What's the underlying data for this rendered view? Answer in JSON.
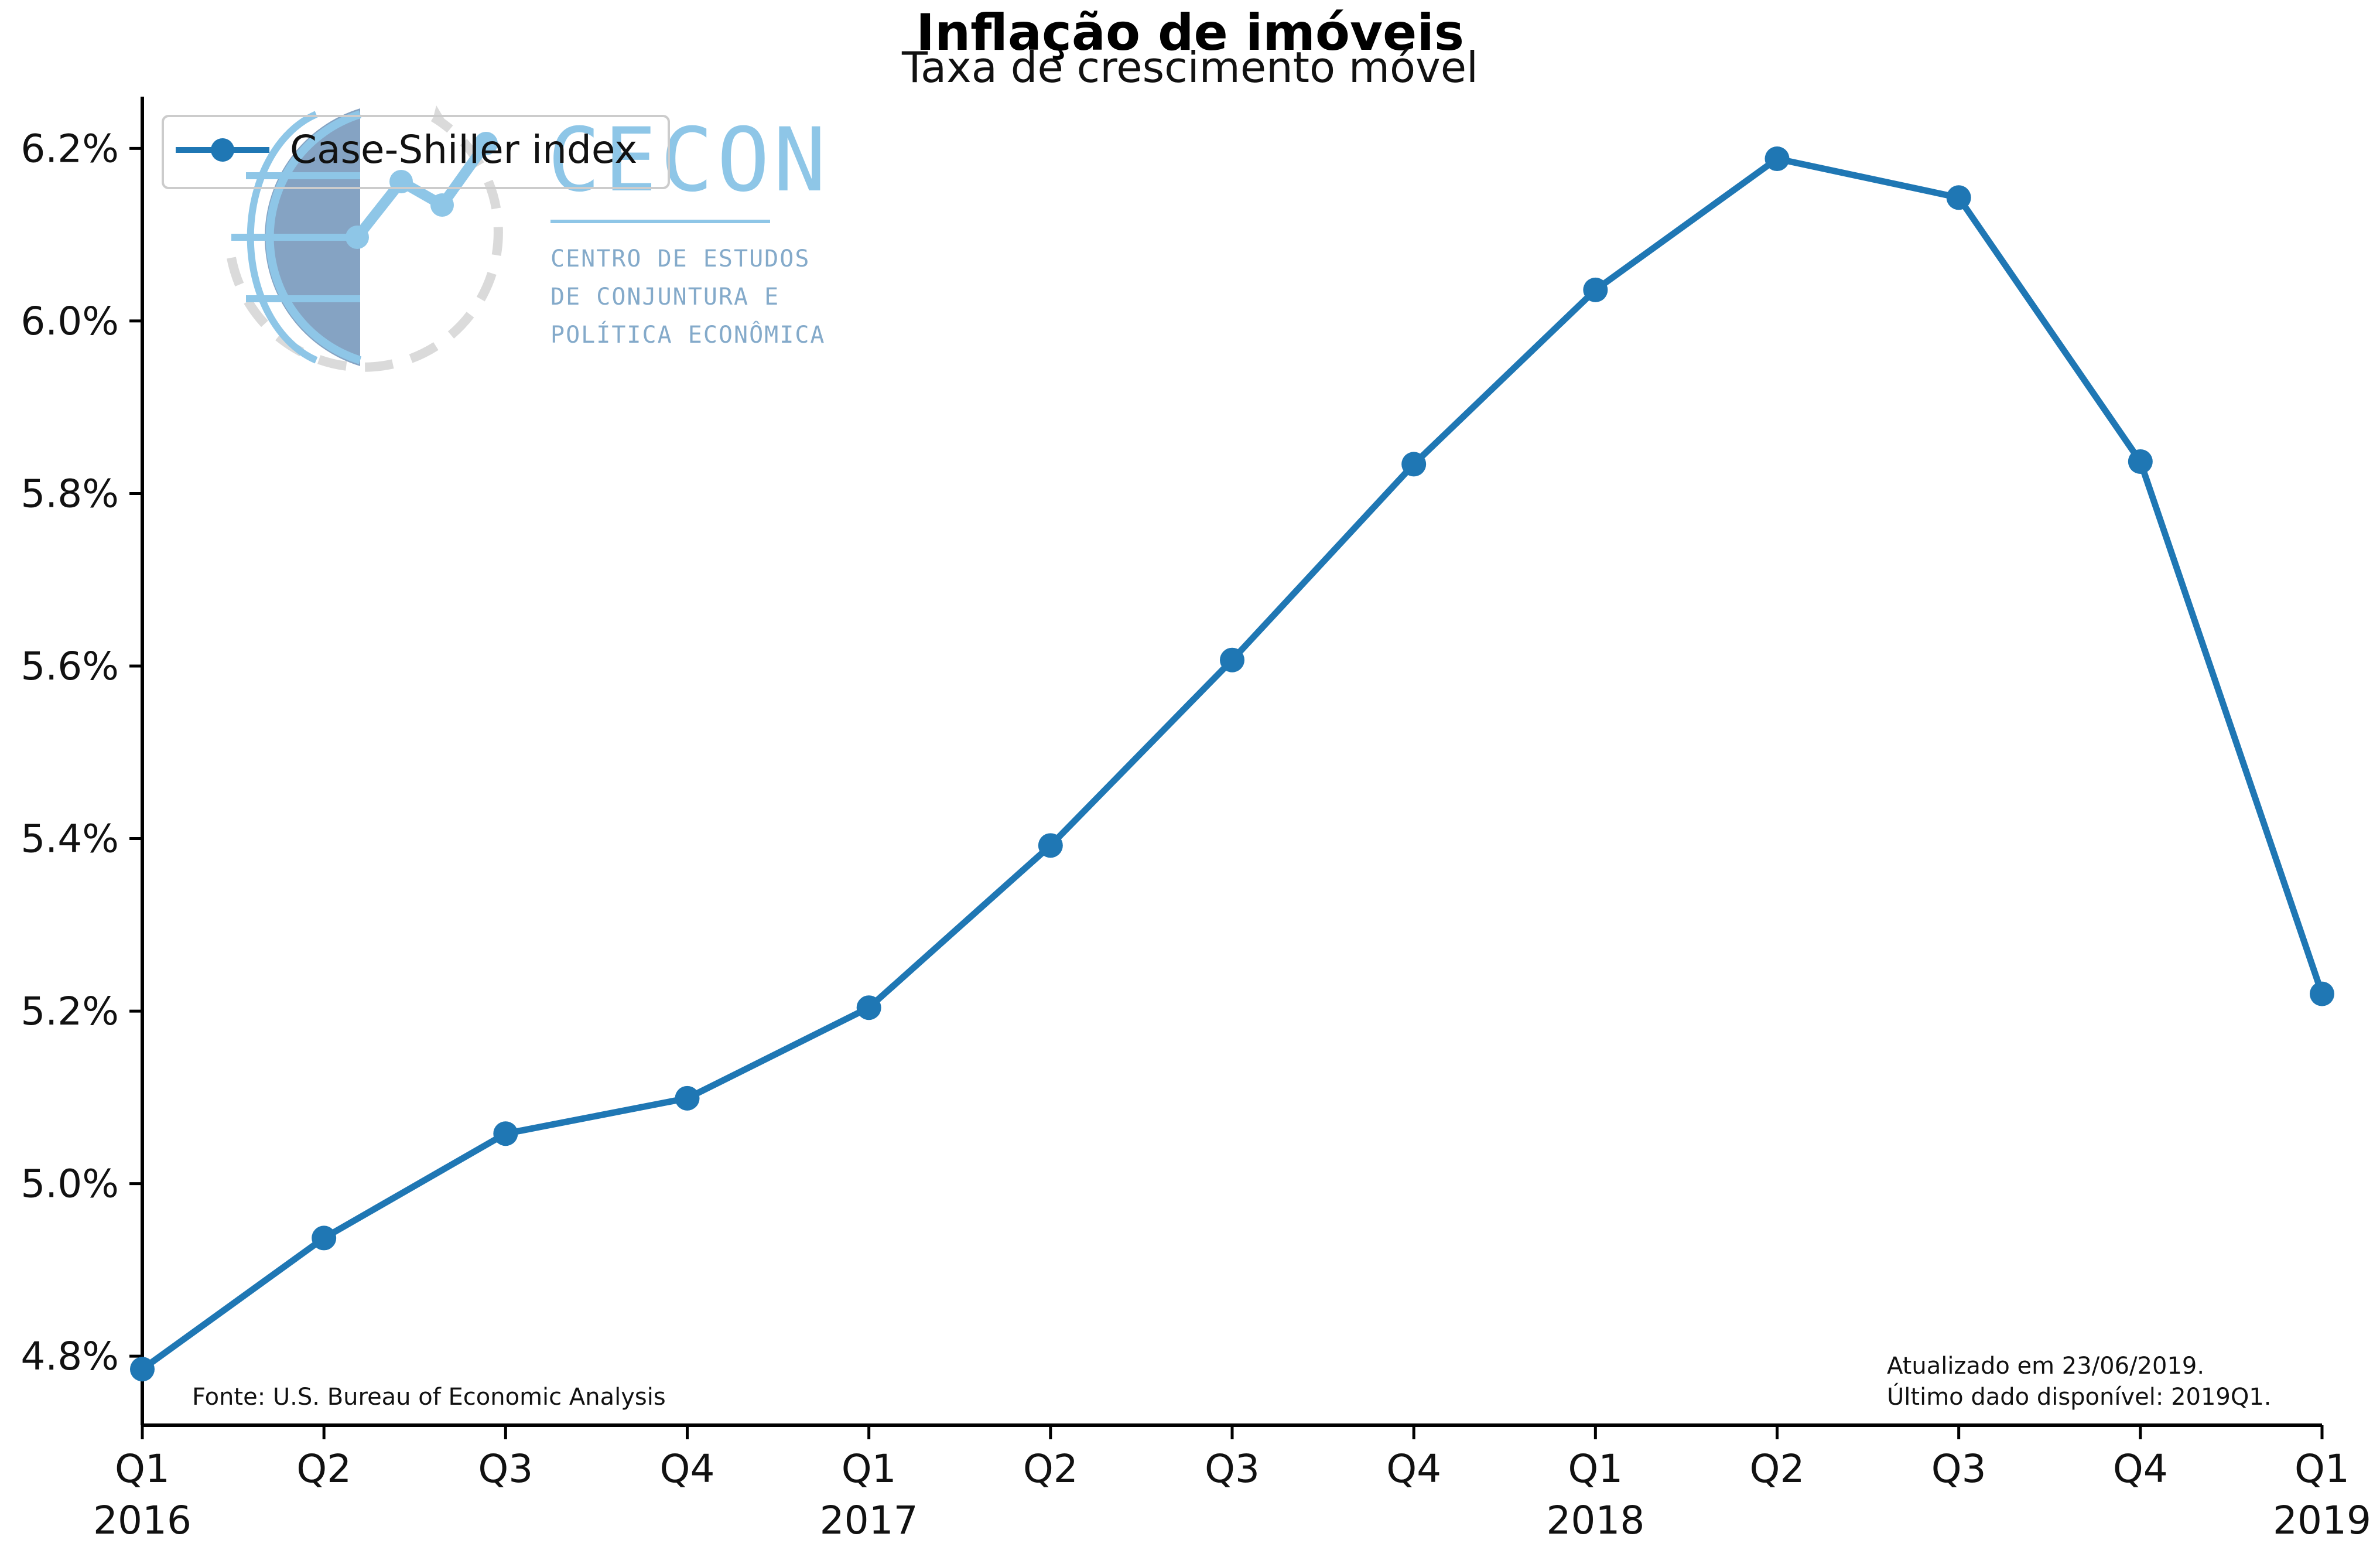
{
  "chart_data": {
    "type": "line",
    "title": "Inflação de imóveis",
    "subtitle": "Taxa de crescimento móvel",
    "xlabel": "",
    "ylabel": "",
    "categories": [
      [
        "Q1",
        "2016"
      ],
      [
        "Q2",
        ""
      ],
      [
        "Q3",
        ""
      ],
      [
        "Q4",
        ""
      ],
      [
        "Q1",
        "2017"
      ],
      [
        "Q2",
        ""
      ],
      [
        "Q3",
        ""
      ],
      [
        "Q4",
        ""
      ],
      [
        "Q1",
        "2018"
      ],
      [
        "Q2",
        ""
      ],
      [
        "Q3",
        ""
      ],
      [
        "Q4",
        ""
      ],
      [
        "Q1",
        "2019"
      ]
    ],
    "series": [
      {
        "name": "Case-Shiller index",
        "color": "#1f77b4",
        "values": [
          4.785,
          4.937,
          5.058,
          5.099,
          5.204,
          5.392,
          5.607,
          5.834,
          6.036,
          6.188,
          6.143,
          5.837,
          5.22
        ]
      }
    ],
    "ylim": [
      4.72,
      6.26
    ],
    "yticks": [
      4.8,
      5.0,
      5.2,
      5.4,
      5.6,
      5.8,
      6.0,
      6.2
    ],
    "ytick_labels": [
      "4.8%",
      "5.0%",
      "5.2%",
      "5.4%",
      "5.6%",
      "5.8%",
      "6.0%",
      "6.2%"
    ],
    "grid": false,
    "legend_position": "top-left"
  },
  "notes": {
    "source": "Fonte: U.S. Bureau of Economic Analysis",
    "updated": "Atualizado em 23/06/2019.",
    "last_data": "Último dado disponível: 2019Q1."
  },
  "logo": {
    "name": "CECON",
    "line1": "CENTRO DE ESTUDOS",
    "line2": "DE CONJUNTURA E",
    "line3": "POLÍTICA ECONÔMICA"
  }
}
